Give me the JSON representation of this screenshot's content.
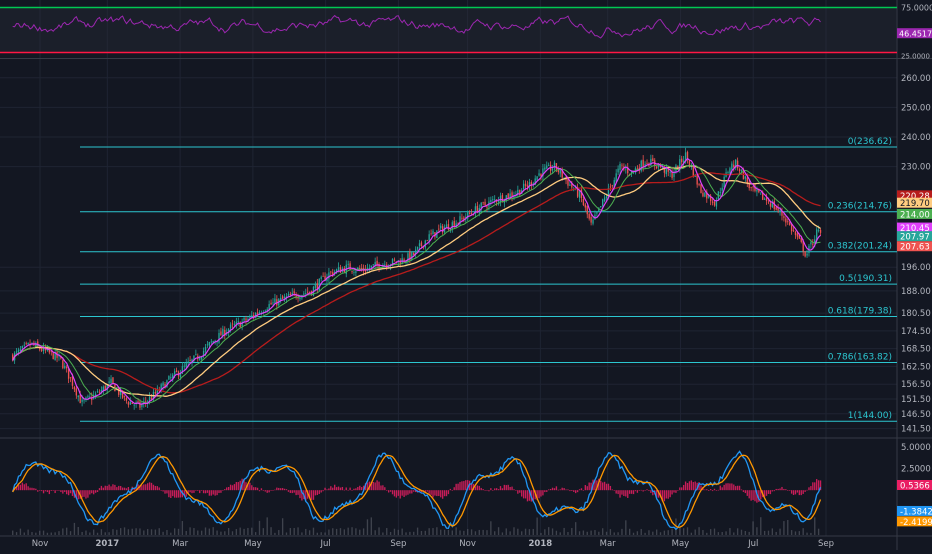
{
  "colors": {
    "background": "#131722",
    "grid": "#1f2433",
    "axis_text": "#b2b5be",
    "fib": "#2cc6d0",
    "up": "#26a69a",
    "down": "#ef5350",
    "rsi": "#9c27b0",
    "rsi_upper": "#00c853",
    "rsi_lower": "#ff1744",
    "ma_fast": "#e040fb",
    "ma_mid": "#4caf50",
    "ma_slow": "#ffcc80",
    "ma_long": "#b71c1c",
    "macd": "#2196f3",
    "signal": "#ff9800",
    "hist": "#e91e63"
  },
  "chart_data": [
    {
      "id": "rsi",
      "type": "line",
      "y_ticks": [
        "75.0000",
        "25.0000"
      ],
      "upper_level": 75,
      "lower_level": 25,
      "ylim": [
        20,
        80
      ],
      "last_value_label": "46.4517"
    },
    {
      "id": "price",
      "type": "candlestick",
      "ylim": [
        139,
        266
      ],
      "y_ticks": [
        {
          "value": 260.0,
          "label": "260.00"
        },
        {
          "value": 250.0,
          "label": "250.00"
        },
        {
          "value": 240.0,
          "label": "240.00"
        },
        {
          "value": 230.0,
          "label": "230.00"
        },
        {
          "value": 196.0,
          "label": "196.00"
        },
        {
          "value": 188.0,
          "label": "188.00"
        },
        {
          "value": 180.5,
          "label": "180.50"
        },
        {
          "value": 174.5,
          "label": "174.50"
        },
        {
          "value": 168.5,
          "label": "168.50"
        },
        {
          "value": 162.5,
          "label": "162.50"
        },
        {
          "value": 156.5,
          "label": "156.50"
        },
        {
          "value": 151.5,
          "label": "151.50"
        },
        {
          "value": 146.5,
          "label": "146.50"
        },
        {
          "value": 141.5,
          "label": "141.50"
        }
      ],
      "fib_levels": [
        {
          "label": "0(236.62)",
          "value": 236.62
        },
        {
          "label": "0.236(214.76)",
          "value": 214.76
        },
        {
          "label": "0.382(201.24)",
          "value": 201.24
        },
        {
          "label": "0.5(190.31)",
          "value": 190.31
        },
        {
          "label": "0.618(179.38)",
          "value": 179.38
        },
        {
          "label": "0.786(163.82)",
          "value": 163.82
        },
        {
          "label": "1(144.00)",
          "value": 144.0
        }
      ],
      "price_badges": [
        {
          "label": "220.28",
          "value": 220.28,
          "color": "#b71c1c",
          "text_color": "#ffffff"
        },
        {
          "label": "219.70",
          "value": 217.8,
          "color": "#ffcc80",
          "text_color": "#131722"
        },
        {
          "label": "214.00",
          "value": 214.0,
          "color": "#4caf50",
          "text_color": "#ffffff"
        },
        {
          "label": "210.45",
          "value": 209.4,
          "color": "#e040fb",
          "text_color": "#ffffff"
        },
        {
          "label": "207.97",
          "value": 206.5,
          "color": "#26a69a",
          "text_color": "#ffffff"
        },
        {
          "label": "207.63",
          "value": 203.1,
          "color": "#ef5350",
          "text_color": "#ffffff"
        }
      ],
      "x_labels": [
        {
          "label": "Nov",
          "t": 0.75
        },
        {
          "label": "2017",
          "t": 2.6
        },
        {
          "label": "Mar",
          "t": 4.6
        },
        {
          "label": "May",
          "t": 6.6
        },
        {
          "label": "Jul",
          "t": 8.6
        },
        {
          "label": "Sep",
          "t": 10.6
        },
        {
          "label": "Nov",
          "t": 12.5
        },
        {
          "label": "2018",
          "t": 14.5
        },
        {
          "label": "Mar",
          "t": 16.35
        },
        {
          "label": "May",
          "t": 18.35
        },
        {
          "label": "Jul",
          "t": 20.35
        },
        {
          "label": "Sep",
          "t": 22.35
        }
      ],
      "path_t": [
        0,
        0.5,
        1.0,
        1.3,
        1.6,
        1.9,
        2.3,
        2.7,
        3.1,
        3.5,
        3.9,
        4.3,
        4.7,
        5.1,
        5.5,
        5.9,
        6.4,
        7.0,
        7.6,
        8.2,
        8.7,
        9.2,
        9.6,
        10.1,
        10.6,
        11.0,
        11.4,
        11.8,
        12.3,
        12.8,
        13.3,
        13.8,
        14.2,
        14.5,
        14.9,
        15.3,
        15.6,
        15.9,
        16.3,
        16.7,
        17.0,
        17.4,
        17.8,
        18.1,
        18.5,
        18.9,
        19.3,
        19.7,
        19.9,
        20.3,
        20.8,
        21.2,
        21.6,
        21.7,
        21.8,
        22.0,
        22.1,
        22.2
      ],
      "path_v": [
        166,
        170,
        167,
        165,
        158,
        150,
        153,
        157,
        151,
        149,
        153,
        158,
        162,
        166,
        171,
        175,
        178,
        183,
        186,
        188,
        194,
        196,
        195,
        197,
        198,
        200,
        206,
        209,
        212,
        216,
        219,
        221,
        224,
        228,
        230,
        224,
        220,
        210,
        220,
        230,
        228,
        232,
        230,
        227,
        234,
        222,
        218,
        230,
        231,
        222,
        218,
        213,
        205,
        203,
        200,
        205,
        208,
        207
      ],
      "ma_fast_period": 5,
      "ma_mid_period": 12,
      "ma_slow_period": 28,
      "ma_long_period": 55
    },
    {
      "id": "macd",
      "type": "line",
      "ylim": [
        -4.6,
        5.8
      ],
      "y_ticks": [
        "5.0000",
        "2.5000"
      ],
      "macd_badge": "-1.3842",
      "signal_badge": "-2.4199",
      "hist_badge": "0.5366"
    }
  ]
}
